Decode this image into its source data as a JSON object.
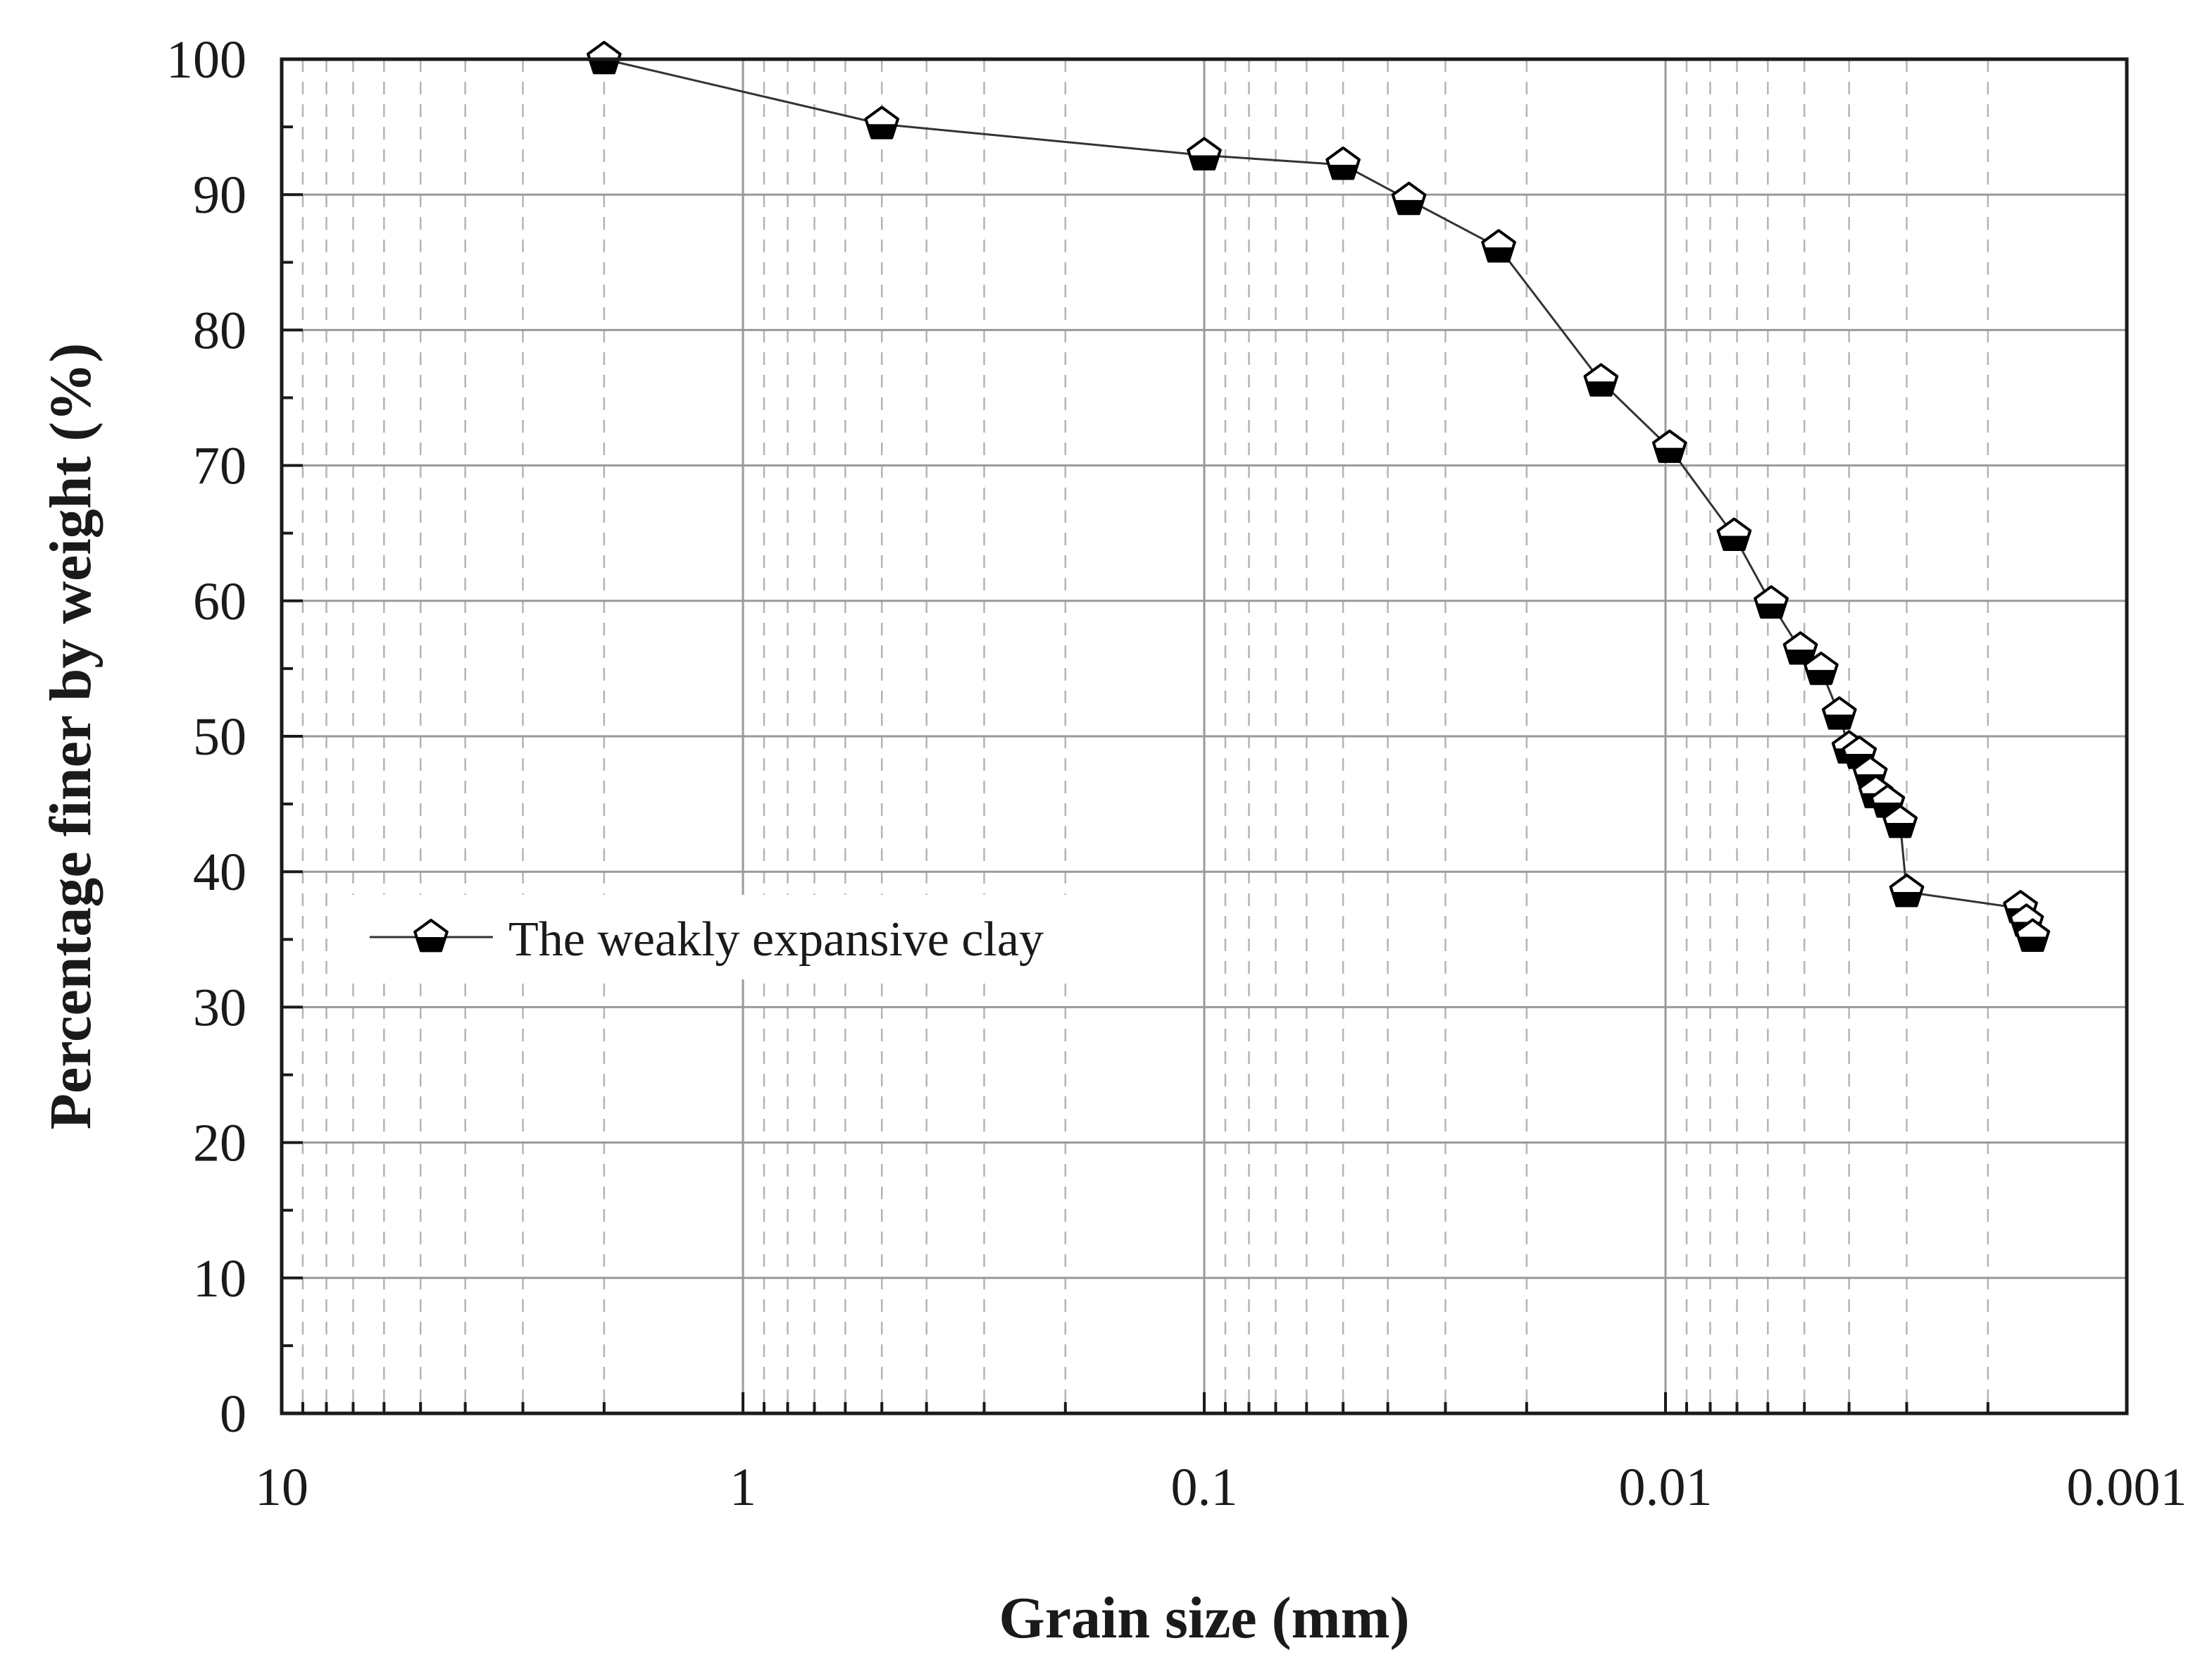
{
  "chart_data": {
    "type": "scatter",
    "xlabel": "Grain size (mm)",
    "ylabel": "Percentage finer by weight (%)",
    "x_scale": "log",
    "x_reversed": true,
    "xlim": [
      10,
      0.001
    ],
    "ylim": [
      0,
      100
    ],
    "x_ticks": [
      10,
      1,
      0.1,
      0.01,
      0.001
    ],
    "x_tick_labels": [
      "10",
      "1",
      "0.1",
      "0.01",
      "0.001"
    ],
    "y_ticks": [
      0,
      10,
      20,
      30,
      40,
      50,
      60,
      70,
      80,
      90,
      100
    ],
    "y_tick_labels": [
      "0",
      "10",
      "20",
      "30",
      "40",
      "50",
      "60",
      "70",
      "80",
      "90",
      "100"
    ],
    "grid": "major solid, minor dashed",
    "legend_placement": "center-left",
    "marker": "pentagon-half-filled",
    "series": [
      {
        "name": "The weakly expansive clay",
        "color": "#000000",
        "x": [
          2,
          0.5,
          0.1,
          0.05,
          0.036,
          0.023,
          0.0138,
          0.0098,
          0.0071,
          0.0059,
          0.0051,
          0.0046,
          0.0042,
          0.004,
          0.0038,
          0.0036,
          0.0035,
          0.0033,
          0.0031,
          0.003,
          0.0017,
          0.00165,
          0.0016,
          0.0016
        ],
        "y": [
          100,
          95.2,
          92.9,
          92.2,
          89.6,
          86.1,
          76.2,
          71.3,
          64.8,
          59.8,
          56.4,
          54.9,
          51.6,
          49.1,
          48.7,
          47.2,
          45.8,
          45.1,
          43.6,
          38.5,
          37.3,
          36.3,
          35.2,
          35.2
        ]
      }
    ]
  }
}
